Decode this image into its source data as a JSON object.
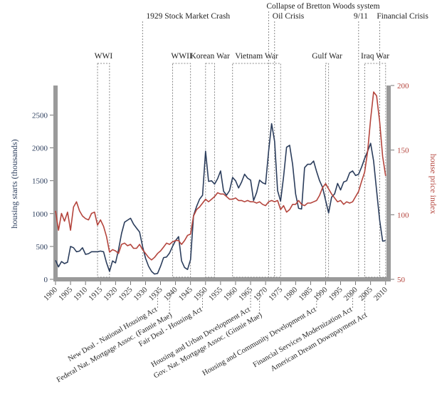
{
  "chart_data": {
    "type": "line",
    "title": "",
    "xlabel": "",
    "ylabel": "housing starts (thousands)",
    "y2label": "house price index",
    "xlim": [
      1900,
      2011
    ],
    "ylim": [
      0,
      2950
    ],
    "y2lim": [
      50,
      200
    ],
    "x_ticks": [
      1900,
      1905,
      1910,
      1915,
      1920,
      1925,
      1930,
      1935,
      1940,
      1945,
      1950,
      1955,
      1960,
      1965,
      1970,
      1975,
      1980,
      1985,
      1990,
      1995,
      2000,
      2005,
      2010
    ],
    "y_ticks": [
      0,
      500,
      1000,
      1500,
      2000,
      2500
    ],
    "y2_ticks": [
      50,
      100,
      150,
      200
    ],
    "grid": false,
    "legend": "none",
    "colors": {
      "housing_starts": "#2b3d5c",
      "price_index": "#b4443c",
      "frame": "#9a9a9a"
    },
    "series": [
      {
        "axis": "left",
        "x": [
          1900,
          1901,
          1902,
          1903,
          1904,
          1905,
          1906,
          1907,
          1908,
          1909,
          1910,
          1911,
          1912,
          1913,
          1914,
          1915,
          1916,
          1917,
          1918,
          1919,
          1920,
          1921,
          1922,
          1923,
          1924,
          1925,
          1926,
          1927,
          1928,
          1929,
          1930,
          1931,
          1932,
          1933,
          1934,
          1935,
          1936,
          1937,
          1938,
          1939,
          1940,
          1941,
          1942,
          1943,
          1944,
          1945,
          1946,
          1947,
          1948,
          1949,
          1950,
          1951,
          1952,
          1953,
          1954,
          1955,
          1956,
          1957,
          1958,
          1959,
          1960,
          1961,
          1962,
          1963,
          1964,
          1965,
          1966,
          1967,
          1968,
          1969,
          1970,
          1971,
          1972,
          1973,
          1974,
          1975,
          1976,
          1977,
          1978,
          1979,
          1980,
          1981,
          1982,
          1983,
          1984,
          1985,
          1986,
          1987,
          1988,
          1989,
          1990,
          1991,
          1992,
          1993,
          1994,
          1995,
          1996,
          1997,
          1998,
          1999,
          2000,
          2001,
          2002,
          2003,
          2004,
          2005,
          2006,
          2007,
          2008,
          2009,
          2010
        ],
        "y": [
          290,
          190,
          270,
          240,
          260,
          500,
          480,
          420,
          430,
          480,
          380,
          390,
          420,
          420,
          420,
          430,
          420,
          250,
          120,
          280,
          250,
          450,
          700,
          870,
          900,
          930,
          840,
          780,
          720,
          500,
          320,
          200,
          120,
          80,
          90,
          200,
          330,
          340,
          400,
          500,
          590,
          650,
          280,
          180,
          150,
          300,
          970,
          1110,
          1220,
          1280,
          1950,
          1490,
          1500,
          1450,
          1530,
          1650,
          1340,
          1280,
          1350,
          1550,
          1500,
          1390,
          1480,
          1600,
          1540,
          1510,
          1200,
          1320,
          1510,
          1470,
          1450,
          1950,
          2370,
          2100,
          1350,
          1190,
          1560,
          2010,
          2040,
          1750,
          1300,
          1080,
          1070,
          1700,
          1750,
          1750,
          1800,
          1640,
          1500,
          1400,
          1200,
          1010,
          1250,
          1300,
          1460,
          1360,
          1480,
          1500,
          1620,
          1650,
          1580,
          1600,
          1710,
          1840,
          1950,
          2070,
          1800,
          1350,
          900,
          580,
          590
        ]
      },
      {
        "axis": "right",
        "x": [
          1900,
          1901,
          1902,
          1903,
          1904,
          1905,
          1906,
          1907,
          1908,
          1909,
          1910,
          1911,
          1912,
          1913,
          1914,
          1915,
          1916,
          1917,
          1918,
          1919,
          1920,
          1921,
          1922,
          1923,
          1924,
          1925,
          1926,
          1927,
          1928,
          1929,
          1930,
          1931,
          1932,
          1933,
          1934,
          1935,
          1936,
          1937,
          1938,
          1939,
          1940,
          1941,
          1942,
          1943,
          1944,
          1945,
          1946,
          1947,
          1948,
          1949,
          1950,
          1951,
          1952,
          1953,
          1954,
          1955,
          1956,
          1957,
          1958,
          1959,
          1960,
          1961,
          1962,
          1963,
          1964,
          1965,
          1966,
          1967,
          1968,
          1969,
          1970,
          1971,
          1972,
          1973,
          1974,
          1975,
          1976,
          1977,
          1978,
          1979,
          1980,
          1981,
          1982,
          1983,
          1984,
          1985,
          1986,
          1987,
          1988,
          1989,
          1990,
          1991,
          1992,
          1993,
          1994,
          1995,
          1996,
          1997,
          1998,
          1999,
          2000,
          2001,
          2002,
          2003,
          2004,
          2005,
          2006,
          2007,
          2008,
          2009,
          2010
        ],
        "y": [
          103,
          88,
          101,
          95,
          102,
          88,
          106,
          110,
          103,
          99,
          97,
          96,
          101,
          102,
          92,
          96,
          91,
          83,
          71,
          73,
          72,
          70,
          77,
          78,
          76,
          77,
          74,
          74,
          77,
          73,
          70,
          67,
          65,
          67,
          70,
          72,
          75,
          78,
          77,
          79,
          80,
          80,
          77,
          80,
          84,
          85,
          99,
          104,
          106,
          109,
          112,
          110,
          112,
          114,
          117,
          116,
          116,
          114,
          112,
          112,
          113,
          111,
          111,
          110,
          111,
          110,
          110,
          109,
          110,
          108,
          107,
          110,
          111,
          110,
          111,
          104,
          107,
          102,
          104,
          108,
          108,
          111,
          108,
          107,
          109,
          109,
          110,
          111,
          115,
          121,
          124,
          120,
          116,
          113,
          110,
          111,
          108,
          110,
          109,
          110,
          114,
          118,
          126,
          133,
          149,
          174,
          195,
          192,
          172,
          145,
          130
        ]
      }
    ]
  },
  "events": [
    {
      "label": "WWI",
      "start": 1914,
      "end": 1918,
      "top": "row3"
    },
    {
      "label": "1929 Stock Market Crash",
      "start": 1929,
      "end": 1929,
      "top": "row1"
    },
    {
      "label": "WWII",
      "start": 1939,
      "end": 1945,
      "top": "row3"
    },
    {
      "label": "Korean War",
      "start": 1950,
      "end": 1953,
      "top": "row3"
    },
    {
      "label": "Vietnam War",
      "start": 1959,
      "end": 1975,
      "top": "row3"
    },
    {
      "label": "Collapse of Bretton Woods system",
      "start": 1971,
      "end": 1971,
      "top": "row0"
    },
    {
      "label": "Oil Crisis",
      "start": 1973,
      "end": 1973,
      "top": "row1"
    },
    {
      "label": "Gulf War",
      "start": 1990,
      "end": 1991,
      "top": "row3"
    },
    {
      "label": "9/11",
      "start": 2001,
      "end": 2001,
      "top": "row1"
    },
    {
      "label": "Financial Crisis",
      "start": 2008,
      "end": 2008,
      "top": "row1"
    },
    {
      "label": "Iraq War",
      "start": 2003,
      "end": 2010,
      "top": "row3"
    }
  ],
  "acts": [
    {
      "label": "New Deal - National Housing Act",
      "year": 1934,
      "row": 0
    },
    {
      "label": "Federal Nat. Mortgage Assoc. (Fannie Mae)",
      "year": 1938,
      "row": 1
    },
    {
      "label": "Fair Deal - Housing Act",
      "year": 1949,
      "row": 0
    },
    {
      "label": "Housing and Urban Development Act",
      "year": 1965,
      "row": 0
    },
    {
      "label": "Gov. Nat. Mortgage Assoc. (Ginnie Mae)",
      "year": 1968,
      "row": 1
    },
    {
      "label": "Housing and Community Development Act",
      "year": 1987,
      "row": 0
    },
    {
      "label": "Financial Services Modernization Act",
      "year": 1999,
      "row": 0
    },
    {
      "label": "American Dream Downpayment Act",
      "year": 2003,
      "row": 1
    }
  ]
}
